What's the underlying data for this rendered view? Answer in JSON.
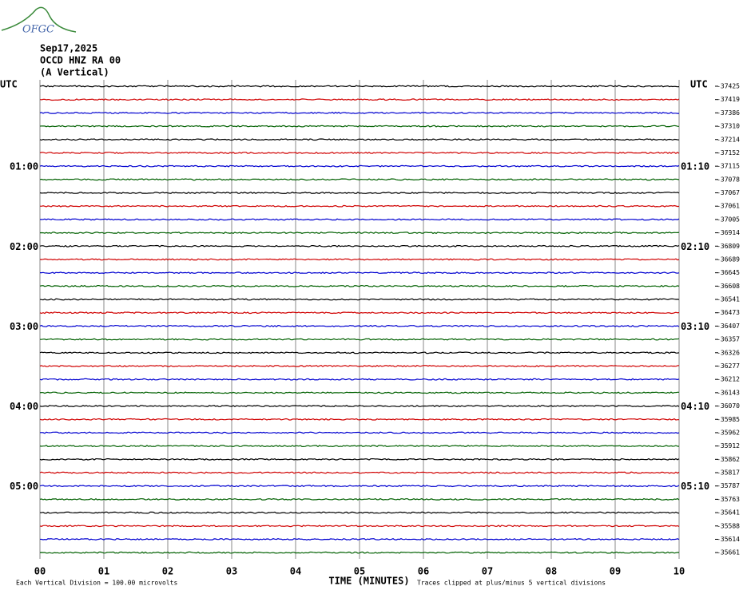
{
  "logo": "OFGC",
  "header": {
    "date": "Sep17,2025",
    "station": "OCCD HNZ RA 00",
    "component": "(A Vertical)"
  },
  "left_corner": "UTC",
  "right_corner": "UTC",
  "left_times": [
    "01:00",
    "02:00",
    "03:00",
    "04:00",
    "05:00"
  ],
  "right_times": [
    "01:10",
    "02:10",
    "03:10",
    "04:10",
    "05:10"
  ],
  "row_offsets": [
    "-37425",
    "-37419",
    "-37386",
    "-37310",
    "-37214",
    "-37152",
    "-37115",
    "-37078",
    "-37067",
    "-37061",
    "-37005",
    "-36914",
    "-36809",
    "-36689",
    "-36645",
    "-36608",
    "-36541",
    "-36473",
    "-36407",
    "-36357",
    "-36326",
    "-36277",
    "-36212",
    "-36143",
    "-36070",
    "-35985",
    "-35962",
    "-35912",
    "-35862",
    "-35817",
    "-35787",
    "-35763",
    "-35641",
    "-35588",
    "-35614",
    "-35661"
  ],
  "trace_colors": [
    "#000000",
    "#d00000",
    "#0000d0",
    "#006000"
  ],
  "minute_labels": [
    "00",
    "01",
    "02",
    "03",
    "04",
    "05",
    "06",
    "07",
    "08",
    "09",
    "10"
  ],
  "x_axis_title": "TIME (MINUTES)",
  "footer_left": "Each Vertical Division =  100.00 microvolts",
  "footer_right": "Traces clipped at plus/minus 5 vertical divisions"
}
